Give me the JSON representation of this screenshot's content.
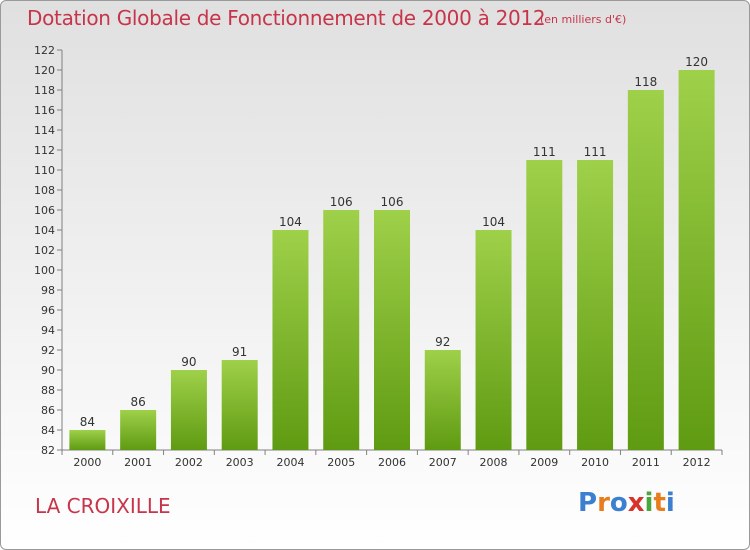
{
  "header": {
    "title": "Dotation Globale de Fonctionnement de 2000 à 2012",
    "subtitle": "(en milliers d'€)"
  },
  "footer": {
    "commune": "LA CROIXILLE",
    "logo_text": "Proxiti"
  },
  "colors": {
    "title": "#c8344a",
    "bar_light": "#9fd04a",
    "bar_dark": "#5f9b12",
    "logo": [
      "#3a7fd0",
      "#e87d1e",
      "#3a7fd0",
      "#d8332a",
      "#4aa83a",
      "#e87d1e",
      "#3a7fd0"
    ]
  },
  "chart_data": {
    "type": "bar",
    "title": "Dotation Globale de Fonctionnement de 2000 à 2012",
    "subtitle": "(en milliers d'€)",
    "categories": [
      "2000",
      "2001",
      "2002",
      "2003",
      "2004",
      "2005",
      "2006",
      "2007",
      "2008",
      "2009",
      "2010",
      "2011",
      "2012"
    ],
    "values": [
      84,
      86,
      90,
      91,
      104,
      106,
      106,
      92,
      104,
      111,
      111,
      118,
      120
    ],
    "ylim": [
      82,
      122
    ],
    "yticks": [
      82,
      84,
      86,
      88,
      90,
      92,
      94,
      96,
      98,
      100,
      102,
      104,
      106,
      108,
      110,
      112,
      114,
      116,
      118,
      120,
      122
    ],
    "grid": false,
    "data_labels": true
  }
}
